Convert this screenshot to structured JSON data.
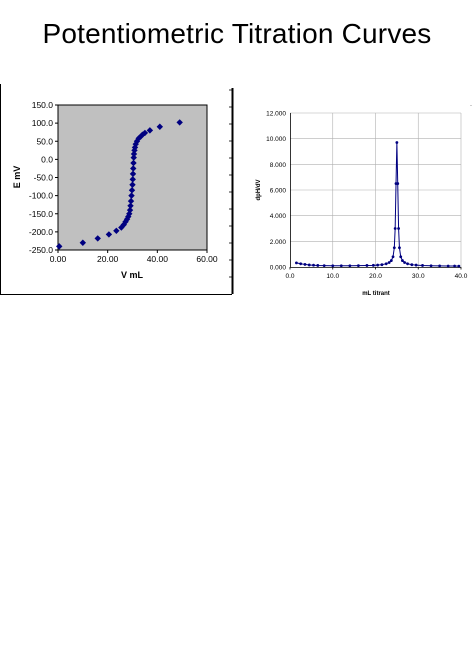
{
  "page": {
    "title": "Potentiometric Titration Curves"
  },
  "chart_data": [
    {
      "type": "scatter",
      "title": "",
      "xlabel": "V mL",
      "ylabel": "E mV",
      "xlim": [
        0,
        60
      ],
      "ylim": [
        -250,
        150
      ],
      "xticks": [
        "0.00",
        "20.00",
        "40.00",
        "60.00"
      ],
      "yticks": [
        "150.0",
        "100.0",
        "50.0",
        "0.0",
        "-50.0",
        "-100.0",
        "-150.0",
        "-200.0",
        "-250.0"
      ],
      "background": "#c0c0c0",
      "marker_color": "#000080",
      "marker": "diamond",
      "grid": false,
      "legend": "none",
      "series": [
        {
          "x": [
            0.5,
            10.0,
            16.0,
            20.5,
            23.5,
            25.5,
            26.5,
            27.2,
            27.8,
            28.3,
            28.7,
            29.0,
            29.2,
            29.4,
            29.6,
            29.8,
            30.0,
            30.1,
            30.2,
            30.3,
            30.4,
            30.5,
            30.6,
            30.8,
            31.0,
            31.3,
            31.8,
            32.5,
            33.3,
            34.0,
            35.0,
            37.0,
            41.0,
            49.0
          ],
          "y": [
            -240,
            -230,
            -218,
            -207,
            -197,
            -188,
            -180,
            -172,
            -165,
            -158,
            -150,
            -140,
            -128,
            -115,
            -100,
            -85,
            -70,
            -55,
            -40,
            -25,
            -10,
            5,
            15,
            25,
            33,
            42,
            50,
            58,
            63,
            68,
            73,
            80,
            90,
            102
          ]
        }
      ]
    },
    {
      "type": "line",
      "title": "",
      "xlabel": "mL titrant",
      "ylabel": "dpH/dV",
      "xlim": [
        0,
        40
      ],
      "ylim": [
        0,
        12
      ],
      "xticks": [
        "0.0",
        "10.0",
        "20.0",
        "30.0",
        "40.0"
      ],
      "yticks": [
        "12.000",
        "10.000",
        "8.000",
        "6.000",
        "4.000",
        "2.000",
        "0.000"
      ],
      "background": "#ffffff",
      "line_color": "#000080",
      "marker": "circle",
      "grid": true,
      "legend": "none",
      "series": [
        {
          "x": [
            1.5,
            2.5,
            3.5,
            4.5,
            5.5,
            6.5,
            8,
            10,
            12,
            14,
            16,
            18,
            19.5,
            20.5,
            21.5,
            22.5,
            23.2,
            23.7,
            24.1,
            24.4,
            24.6,
            24.8,
            25.0,
            25.2,
            25.4,
            25.6,
            25.9,
            26.3,
            26.8,
            27.5,
            28.5,
            29.5,
            31,
            33,
            35,
            37,
            38.5,
            39.5
          ],
          "y": [
            0.32,
            0.25,
            0.2,
            0.16,
            0.14,
            0.12,
            0.11,
            0.1,
            0.1,
            0.1,
            0.11,
            0.12,
            0.13,
            0.15,
            0.18,
            0.25,
            0.35,
            0.5,
            0.8,
            1.5,
            3.0,
            6.5,
            9.7,
            6.5,
            3.0,
            1.5,
            0.8,
            0.5,
            0.35,
            0.25,
            0.18,
            0.15,
            0.12,
            0.1,
            0.09,
            0.08,
            0.08,
            0.07
          ]
        }
      ]
    }
  ]
}
